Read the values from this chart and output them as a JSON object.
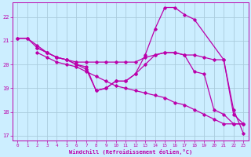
{
  "background_color": "#cceeff",
  "grid_color": "#aaccdd",
  "line_color": "#bb00aa",
  "xlabel": "Windchill (Refroidissement éolien,°C)",
  "xlim": [
    -0.5,
    23.5
  ],
  "ylim": [
    16.8,
    22.6
  ],
  "yticks": [
    17,
    18,
    19,
    20,
    21,
    22
  ],
  "xticks": [
    0,
    1,
    2,
    3,
    4,
    5,
    6,
    7,
    8,
    9,
    10,
    11,
    12,
    13,
    14,
    15,
    16,
    17,
    18,
    19,
    20,
    21,
    22,
    23
  ],
  "series": [
    {
      "x": [
        0,
        1,
        2,
        3,
        4,
        5,
        6,
        7,
        8,
        9,
        10,
        11,
        12,
        13,
        14,
        15,
        16,
        17,
        18,
        21,
        22,
        23
      ],
      "y": [
        21.1,
        21.1,
        20.7,
        20.5,
        20.3,
        20.2,
        20.0,
        19.9,
        18.9,
        19.0,
        19.3,
        19.3,
        19.6,
        20.4,
        21.5,
        22.4,
        22.4,
        22.1,
        21.9,
        20.2,
        18.1,
        17.1
      ]
    },
    {
      "x": [
        0,
        1,
        2,
        3,
        4,
        5,
        6,
        7,
        8,
        9,
        10,
        11,
        12,
        13,
        14,
        15,
        16,
        17,
        18,
        19,
        20,
        21,
        22,
        23
      ],
      "y": [
        21.1,
        21.1,
        20.8,
        20.5,
        20.3,
        20.2,
        20.1,
        20.1,
        20.1,
        20.1,
        20.1,
        20.1,
        20.1,
        20.3,
        20.4,
        20.5,
        20.5,
        20.4,
        20.4,
        20.3,
        20.2,
        20.2,
        17.9,
        17.5
      ]
    },
    {
      "x": [
        2,
        3,
        4,
        5,
        6,
        7,
        8,
        9,
        10,
        11,
        12,
        13,
        14,
        15,
        16,
        17,
        18,
        19,
        20,
        21,
        22,
        23
      ],
      "y": [
        20.7,
        20.5,
        20.3,
        20.2,
        20.0,
        19.8,
        18.9,
        19.0,
        19.3,
        19.3,
        19.6,
        20.0,
        20.4,
        20.5,
        20.5,
        20.4,
        19.7,
        19.6,
        18.1,
        17.9,
        17.5,
        17.5
      ]
    },
    {
      "x": [
        2,
        3,
        4,
        5,
        6,
        7,
        8,
        9,
        10,
        11,
        12,
        13,
        14,
        15,
        16,
        17,
        18,
        19,
        20,
        21,
        22,
        23
      ],
      "y": [
        20.5,
        20.3,
        20.1,
        20.0,
        19.9,
        19.7,
        19.5,
        19.3,
        19.1,
        19.0,
        18.9,
        18.8,
        18.7,
        18.6,
        18.4,
        18.3,
        18.1,
        17.9,
        17.7,
        17.5,
        17.5,
        17.5
      ]
    }
  ]
}
